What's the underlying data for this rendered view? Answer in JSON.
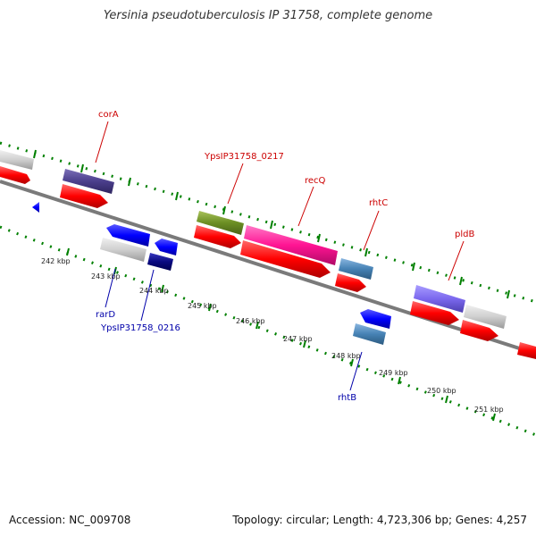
{
  "title": "Yersinia pseudotuberculosis IP 31758, complete genome",
  "footer": {
    "accession": "Accession: NC_009708",
    "summary": "Topology: circular; Length: 4,723,306 bp; Genes: 4,257"
  },
  "colors": {
    "forward_cds": "#ff0000",
    "reverse_cds": "#0000ff",
    "forward_label": "#cc0000",
    "reverse_label": "#0000aa",
    "tick": "#008000",
    "backbone": "#888888"
  },
  "kbp_ticks": [
    "242 kbp",
    "243 kbp",
    "244 kbp",
    "245 kbp",
    "246 kbp",
    "247 kbp",
    "248 kbp",
    "249 kbp",
    "250 kbp",
    "251 kbp"
  ],
  "gene_labels": {
    "forward": [
      "corA",
      "YpsIP31758_0217",
      "recQ",
      "rhtC",
      "pldB"
    ],
    "reverse": [
      "rarD",
      "YpsIP31758_0216",
      "rhtB"
    ]
  }
}
